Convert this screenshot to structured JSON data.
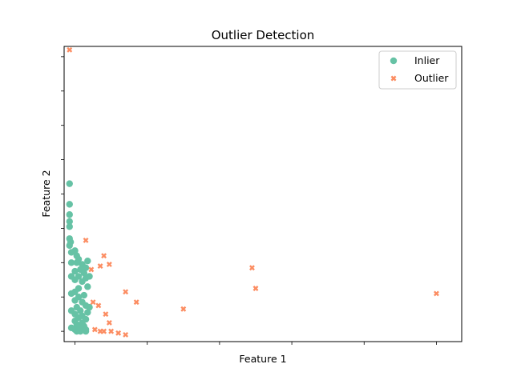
{
  "chart_data": {
    "type": "scatter",
    "title": "Outlier Detection",
    "xlabel": "Feature 1",
    "ylabel": "Feature 2",
    "x_tick_count": 6,
    "y_tick_count": 9,
    "tick_labels_visible": false,
    "grid": false,
    "legend_position": "top-right",
    "xlim": [
      -0.3,
      10.7
    ],
    "ylim": [
      -0.3,
      8.3
    ],
    "series": [
      {
        "name": "Inlier",
        "marker": "circle",
        "color": "#66c2a5",
        "points": [
          [
            -0.15,
            4.3
          ],
          [
            -0.15,
            3.7
          ],
          [
            -0.15,
            3.4
          ],
          [
            -0.15,
            3.2
          ],
          [
            -0.15,
            3.05
          ],
          [
            -0.15,
            2.7
          ],
          [
            -0.12,
            2.6
          ],
          [
            -0.15,
            2.5
          ],
          [
            0.0,
            2.35
          ],
          [
            -0.1,
            2.3
          ],
          [
            0.05,
            2.2
          ],
          [
            0.1,
            2.1
          ],
          [
            0.35,
            2.05
          ],
          [
            0.05,
            2.0
          ],
          [
            0.2,
            1.95
          ],
          [
            0.3,
            1.85
          ],
          [
            0.15,
            1.8
          ],
          [
            0.0,
            1.75
          ],
          [
            0.25,
            1.7
          ],
          [
            0.1,
            1.6
          ],
          [
            0.3,
            1.55
          ],
          [
            0.0,
            1.5
          ],
          [
            0.2,
            1.45
          ],
          [
            0.35,
            1.3
          ],
          [
            0.1,
            1.25
          ],
          [
            0.0,
            1.15
          ],
          [
            0.25,
            1.05
          ],
          [
            0.1,
            1.0
          ],
          [
            0.0,
            0.9
          ],
          [
            0.2,
            0.85
          ],
          [
            0.3,
            0.75
          ],
          [
            0.05,
            0.7
          ],
          [
            0.15,
            0.6
          ],
          [
            0.35,
            0.55
          ],
          [
            0.0,
            0.5
          ],
          [
            0.2,
            0.45
          ],
          [
            0.1,
            0.4
          ],
          [
            0.3,
            0.35
          ],
          [
            0.0,
            0.3
          ],
          [
            0.2,
            0.25
          ],
          [
            0.05,
            0.2
          ],
          [
            0.25,
            0.15
          ],
          [
            0.1,
            0.1
          ],
          [
            0.0,
            0.05
          ],
          [
            0.3,
            0.05
          ],
          [
            0.15,
            0.0
          ],
          [
            0.3,
            0.0
          ],
          [
            0.05,
            0.0
          ],
          [
            -0.1,
            0.1
          ],
          [
            -0.1,
            0.6
          ],
          [
            -0.1,
            1.1
          ],
          [
            -0.1,
            1.6
          ],
          [
            -0.1,
            2.0
          ],
          [
            0.4,
            1.6
          ],
          [
            0.4,
            0.7
          ]
        ]
      },
      {
        "name": "Outlier",
        "marker": "x",
        "color": "#fc8d62",
        "points": [
          [
            -0.15,
            8.2
          ],
          [
            0.3,
            2.65
          ],
          [
            0.45,
            1.8
          ],
          [
            0.7,
            1.9
          ],
          [
            0.8,
            2.2
          ],
          [
            0.95,
            1.95
          ],
          [
            1.4,
            1.15
          ],
          [
            1.7,
            0.85
          ],
          [
            0.5,
            0.85
          ],
          [
            0.65,
            0.75
          ],
          [
            0.85,
            0.5
          ],
          [
            0.95,
            0.25
          ],
          [
            0.55,
            0.05
          ],
          [
            0.7,
            0.0
          ],
          [
            0.8,
            0.0
          ],
          [
            1.0,
            0.0
          ],
          [
            1.2,
            -0.05
          ],
          [
            1.4,
            -0.1
          ],
          [
            3.0,
            0.65
          ],
          [
            4.9,
            1.85
          ],
          [
            5.0,
            1.25
          ],
          [
            10.0,
            1.1
          ]
        ]
      }
    ]
  }
}
